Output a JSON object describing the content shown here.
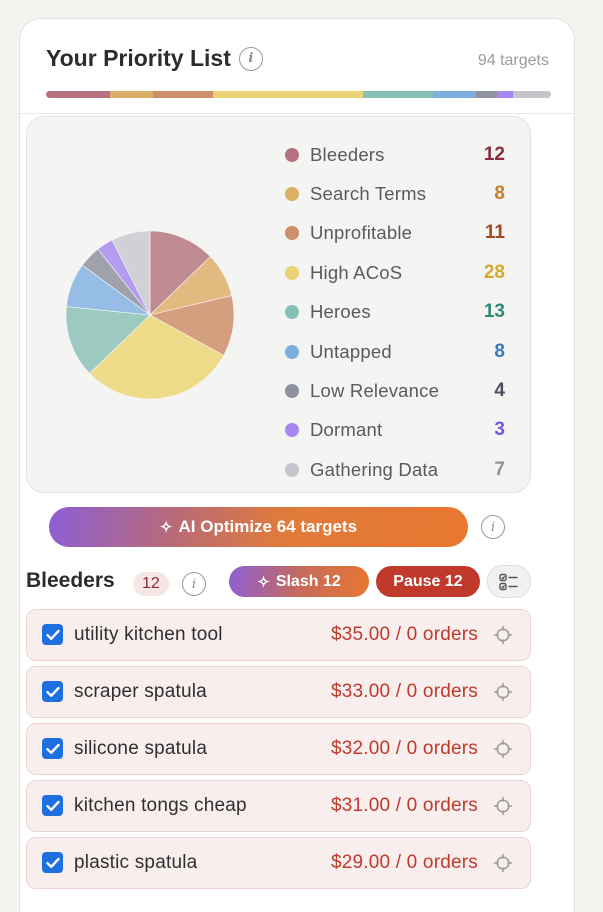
{
  "header": {
    "title": "Your Priority List",
    "target_count": "94 targets"
  },
  "categories": [
    {
      "label": "Bleeders",
      "count": "12",
      "value": 12,
      "color": "#b7707d",
      "pie_color": "#c08a93",
      "count_color": "#8a2e3a"
    },
    {
      "label": "Search Terms",
      "count": "8",
      "value": 8,
      "color": "#ddb067",
      "pie_color": "#e1ba7f",
      "count_color": "#c47f26"
    },
    {
      "label": "Unprofitable",
      "count": "11",
      "value": 11,
      "color": "#cf8f6c",
      "pie_color": "#d59e7e",
      "count_color": "#a2481f"
    },
    {
      "label": "High ACoS",
      "count": "28",
      "value": 28,
      "color": "#ead374",
      "pie_color": "#eedb8a",
      "count_color": "#d4a82a"
    },
    {
      "label": "Heroes",
      "count": "13",
      "value": 13,
      "color": "#86bfb4",
      "pie_color": "#9ccac0",
      "count_color": "#2d8a7a"
    },
    {
      "label": "Untapped",
      "count": "8",
      "value": 8,
      "color": "#7eaede",
      "pie_color": "#95bde6",
      "count_color": "#3c78c2"
    },
    {
      "label": "Low Relevance",
      "count": "4",
      "value": 4,
      "color": "#8e929f",
      "pie_color": "#9fa2ac",
      "count_color": "#4a4f5e"
    },
    {
      "label": "Dormant",
      "count": "3",
      "value": 3,
      "color": "#a687f0",
      "pie_color": "#b49cf0",
      "count_color": "#7a52e0"
    },
    {
      "label": "Gathering Data",
      "count": "7",
      "value": 7,
      "color": "#c3c5ca",
      "pie_color": "#cfd1d5",
      "count_color": "#8f9196"
    }
  ],
  "ai_button": {
    "label": "AI Optimize 64 targets"
  },
  "section": {
    "title": "Bleeders",
    "badge": "12",
    "slash_label": "Slash 12",
    "pause_label": "Pause 12"
  },
  "rows": [
    {
      "label": "utility kitchen tool",
      "value": "$35.00 / 0 orders",
      "checked": true
    },
    {
      "label": "scraper spatula",
      "value": "$33.00 / 0 orders",
      "checked": true
    },
    {
      "label": "silicone spatula",
      "value": "$32.00 / 0 orders",
      "checked": true
    },
    {
      "label": "kitchen tongs cheap",
      "value": "$31.00 / 0 orders",
      "checked": true
    },
    {
      "label": "plastic spatula",
      "value": "$29.00 / 0 orders",
      "checked": true
    }
  ]
}
